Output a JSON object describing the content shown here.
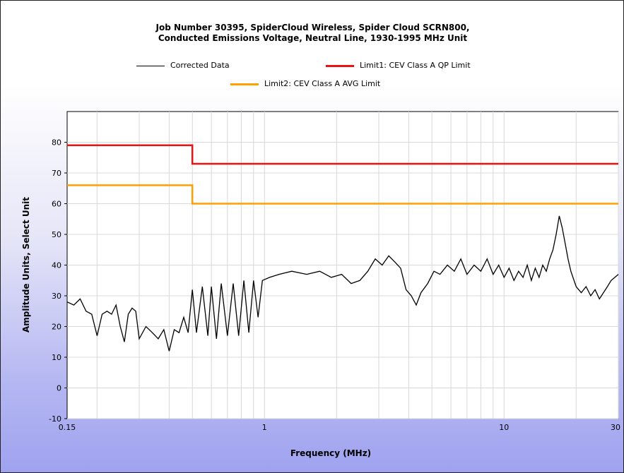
{
  "chart_data": {
    "type": "line",
    "title_line1": "Job Number 30395, SpiderCloud Wireless, Spider Cloud SCRN800,",
    "title_line2": "Conducted Emissions Voltage, Neutral Line, 1930-1995 MHz Unit",
    "xlabel": "Frequency (MHz)",
    "ylabel": "Amplitude Units, Select Unit",
    "x_scale": "log",
    "xlim": [
      0.15,
      30
    ],
    "ylim": [
      -10,
      90
    ],
    "x_ticks": [
      {
        "value": 0.15,
        "label": "0.15"
      },
      {
        "value": 1,
        "label": "1"
      },
      {
        "value": 10,
        "label": "10"
      },
      {
        "value": 30,
        "label": "30"
      }
    ],
    "y_ticks": [
      -10,
      0,
      10,
      20,
      30,
      40,
      50,
      60,
      70,
      80
    ],
    "grid": true,
    "legend_position": "top",
    "series": [
      {
        "name": "Corrected Data",
        "color": "#000000",
        "points": [
          [
            0.15,
            28
          ],
          [
            0.16,
            27
          ],
          [
            0.17,
            29
          ],
          [
            0.18,
            25
          ],
          [
            0.19,
            24
          ],
          [
            0.2,
            17
          ],
          [
            0.21,
            24
          ],
          [
            0.22,
            25
          ],
          [
            0.23,
            24
          ],
          [
            0.24,
            27
          ],
          [
            0.25,
            20
          ],
          [
            0.26,
            15
          ],
          [
            0.27,
            24
          ],
          [
            0.28,
            26
          ],
          [
            0.29,
            25
          ],
          [
            0.3,
            16
          ],
          [
            0.32,
            20
          ],
          [
            0.34,
            18
          ],
          [
            0.36,
            16
          ],
          [
            0.38,
            19
          ],
          [
            0.4,
            12
          ],
          [
            0.42,
            19
          ],
          [
            0.44,
            18
          ],
          [
            0.46,
            23
          ],
          [
            0.48,
            18
          ],
          [
            0.5,
            32
          ],
          [
            0.52,
            18
          ],
          [
            0.55,
            33
          ],
          [
            0.58,
            17
          ],
          [
            0.6,
            33
          ],
          [
            0.63,
            16
          ],
          [
            0.66,
            34
          ],
          [
            0.7,
            17
          ],
          [
            0.74,
            34
          ],
          [
            0.78,
            17
          ],
          [
            0.82,
            35
          ],
          [
            0.86,
            18
          ],
          [
            0.9,
            35
          ],
          [
            0.94,
            23
          ],
          [
            0.98,
            35
          ],
          [
            1.05,
            36
          ],
          [
            1.15,
            37
          ],
          [
            1.3,
            38
          ],
          [
            1.5,
            37
          ],
          [
            1.7,
            38
          ],
          [
            1.9,
            36
          ],
          [
            2.1,
            37
          ],
          [
            2.3,
            34
          ],
          [
            2.5,
            35
          ],
          [
            2.7,
            38
          ],
          [
            2.9,
            42
          ],
          [
            3.1,
            40
          ],
          [
            3.3,
            43
          ],
          [
            3.5,
            41
          ],
          [
            3.7,
            39
          ],
          [
            3.9,
            32
          ],
          [
            4.1,
            30
          ],
          [
            4.3,
            27
          ],
          [
            4.5,
            31
          ],
          [
            4.8,
            34
          ],
          [
            5.1,
            38
          ],
          [
            5.4,
            37
          ],
          [
            5.8,
            40
          ],
          [
            6.2,
            38
          ],
          [
            6.6,
            42
          ],
          [
            7,
            37
          ],
          [
            7.5,
            40
          ],
          [
            8,
            38
          ],
          [
            8.5,
            42
          ],
          [
            9,
            37
          ],
          [
            9.5,
            40
          ],
          [
            10,
            36
          ],
          [
            10.5,
            39
          ],
          [
            11,
            35
          ],
          [
            11.5,
            38
          ],
          [
            12,
            36
          ],
          [
            12.5,
            40
          ],
          [
            13,
            35
          ],
          [
            13.5,
            39
          ],
          [
            14,
            36
          ],
          [
            14.5,
            40
          ],
          [
            15,
            38
          ],
          [
            15.5,
            42
          ],
          [
            16,
            45
          ],
          [
            16.5,
            50
          ],
          [
            17,
            56
          ],
          [
            17.5,
            52
          ],
          [
            18,
            47
          ],
          [
            18.5,
            42
          ],
          [
            19,
            38
          ],
          [
            20,
            33
          ],
          [
            21,
            31
          ],
          [
            22,
            33
          ],
          [
            23,
            30
          ],
          [
            24,
            32
          ],
          [
            25,
            29
          ],
          [
            26,
            31
          ],
          [
            27,
            33
          ],
          [
            28,
            35
          ],
          [
            29,
            36
          ],
          [
            30,
            37
          ]
        ]
      },
      {
        "name": "Limit1: CEV Class A QP Limit",
        "color": "#ee1111",
        "points": [
          [
            0.15,
            79
          ],
          [
            0.5,
            79
          ],
          [
            0.5,
            73
          ],
          [
            30,
            73
          ]
        ]
      },
      {
        "name": "Limit2: CEV Class A AVG Limit",
        "color": "#ffa000",
        "points": [
          [
            0.15,
            66
          ],
          [
            0.5,
            66
          ],
          [
            0.5,
            60
          ],
          [
            30,
            60
          ]
        ]
      }
    ]
  }
}
